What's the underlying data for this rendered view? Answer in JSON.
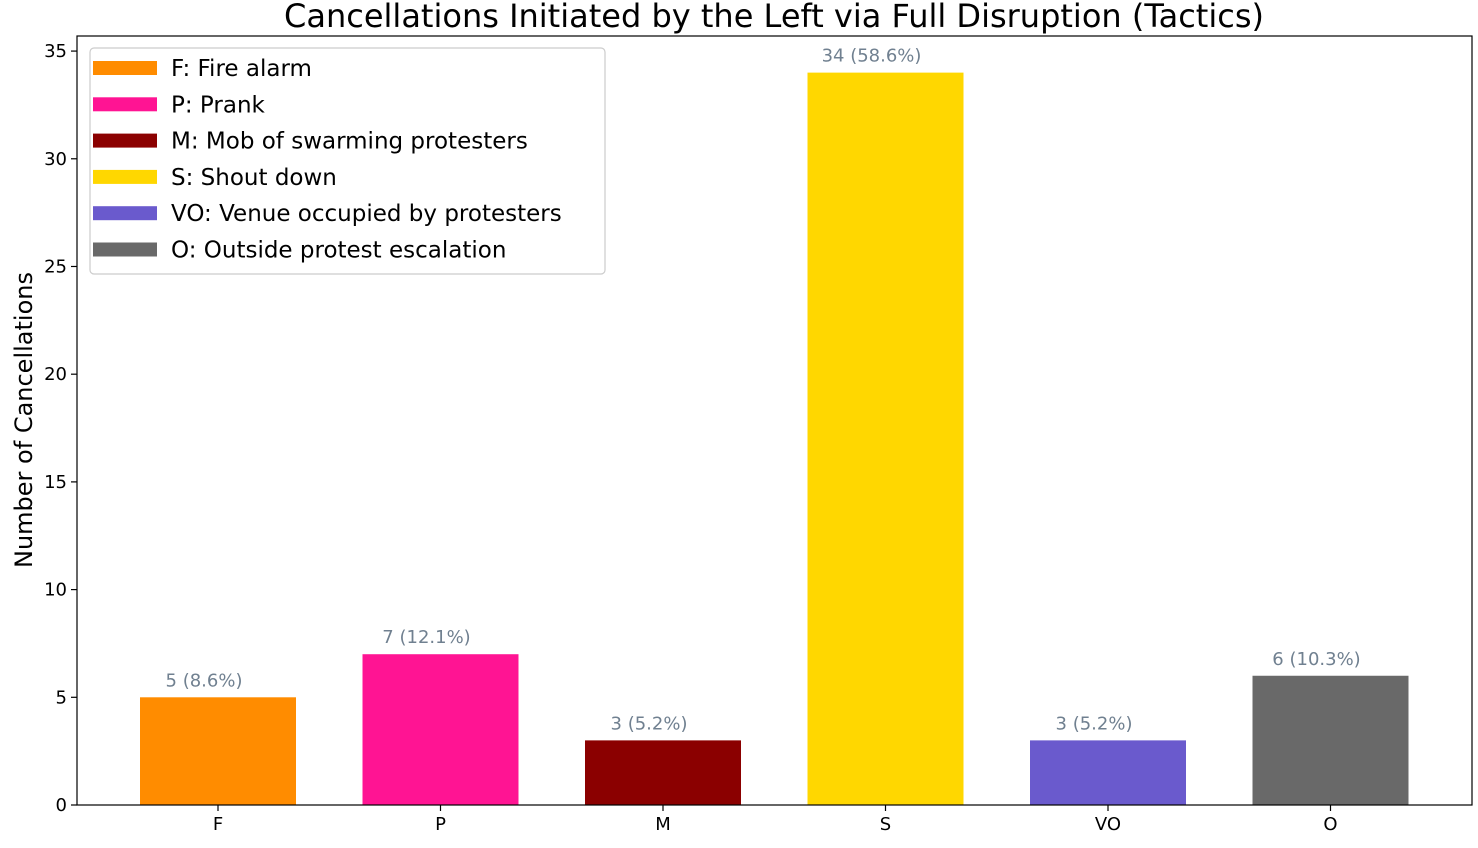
{
  "chart_data": {
    "type": "bar",
    "title": "Cancellations Initiated by the Left via Full Disruption (Tactics)",
    "xlabel": "",
    "ylabel": "Number of Cancellations",
    "categories": [
      "F",
      "P",
      "M",
      "S",
      "VO",
      "O"
    ],
    "values": [
      5,
      7,
      3,
      34,
      3,
      6
    ],
    "data_labels": [
      "5 (8.6%)",
      "7 (12.1%)",
      "3 (5.2%)",
      "34 (58.6%)",
      "3 (5.2%)",
      "6 (10.3%)"
    ],
    "colors": [
      "#FF8C00",
      "#FF1493",
      "#8B0000",
      "#FFD700",
      "#6A5ACD",
      "#696969"
    ],
    "ylim": [
      0,
      35.7
    ],
    "yticks": [
      0,
      5,
      10,
      15,
      20,
      25,
      30,
      35
    ],
    "grid": false,
    "legend": {
      "placement": "top-left",
      "entries": [
        "F: Fire alarm",
        "P: Prank",
        "M: Mob of swarming protesters",
        "S: Shout down",
        "VO: Venue occupied by protesters",
        "O: Outside protest escalation"
      ]
    }
  }
}
